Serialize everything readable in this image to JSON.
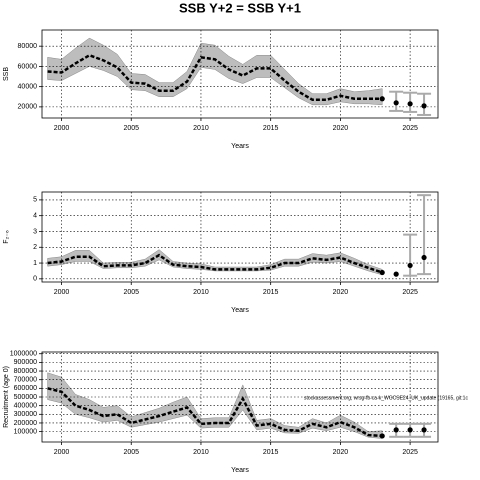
{
  "title": "SSB Y+2 = SSB Y+1",
  "annotation": "stockassessment.org, wrsg-fb-ca-k_WGCSE24_UK_update (19165, git:1c",
  "chart_data": [
    {
      "type": "line",
      "y_label": "SSB",
      "x_label": "Years",
      "x": [
        1999,
        2000,
        2001,
        2002,
        2003,
        2004,
        2005,
        2006,
        2007,
        2008,
        2009,
        2010,
        2011,
        2012,
        2013,
        2014,
        2015,
        2016,
        2017,
        2018,
        2019,
        2020,
        2021,
        2022,
        2023
      ],
      "estimate": [
        55000,
        54000,
        63000,
        71000,
        66000,
        59000,
        44000,
        43000,
        36000,
        36000,
        45000,
        69000,
        67000,
        57000,
        51000,
        58000,
        58000,
        46000,
        35000,
        27000,
        27000,
        31000,
        28000,
        28000,
        28000
      ],
      "lower": [
        47000,
        46000,
        53000,
        60000,
        56000,
        50000,
        37000,
        36000,
        30000,
        30000,
        38000,
        59000,
        57000,
        48000,
        43000,
        49000,
        49000,
        39000,
        29000,
        22000,
        22000,
        25000,
        23000,
        23000,
        22000
      ],
      "upper": [
        69000,
        67000,
        78000,
        88000,
        81000,
        72000,
        53000,
        52000,
        44000,
        44000,
        55000,
        83000,
        81000,
        70000,
        62000,
        71000,
        71000,
        57000,
        43000,
        33000,
        33000,
        38000,
        35000,
        36000,
        38000
      ],
      "forecast": {
        "x": [
          2023,
          2024,
          2025,
          2026
        ],
        "values": [
          28000,
          24000,
          23000,
          21000
        ],
        "lower": [
          null,
          16000,
          15000,
          12000
        ],
        "upper": [
          null,
          35000,
          34000,
          33000
        ]
      },
      "band_color": "#bdbdbd",
      "line_color": "#000000",
      "forecast_color": "#000000",
      "bar_color": "#aaaaaa",
      "xlim": [
        1998.6,
        2027
      ],
      "xticks": [
        2000,
        2005,
        2010,
        2015,
        2020,
        2025
      ],
      "ylim": [
        9000,
        96000
      ],
      "yticks": [
        20000,
        40000,
        60000,
        80000
      ],
      "grid": true
    },
    {
      "type": "line",
      "y_label": "F₂₋₆",
      "x_label": "Years",
      "x": [
        1999,
        2000,
        2001,
        2002,
        2003,
        2004,
        2005,
        2006,
        2007,
        2008,
        2009,
        2010,
        2011,
        2012,
        2013,
        2014,
        2015,
        2016,
        2017,
        2018,
        2019,
        2020,
        2021,
        2022,
        2023
      ],
      "estimate": [
        1.0,
        1.1,
        1.4,
        1.4,
        0.8,
        0.85,
        0.85,
        1.0,
        1.5,
        0.9,
        0.8,
        0.75,
        0.6,
        0.6,
        0.6,
        0.6,
        0.7,
        1.0,
        1.0,
        1.3,
        1.2,
        1.35,
        1.0,
        0.7,
        0.4
      ],
      "lower": [
        0.8,
        0.9,
        1.1,
        1.1,
        0.65,
        0.7,
        0.7,
        0.8,
        1.2,
        0.75,
        0.65,
        0.6,
        0.5,
        0.5,
        0.5,
        0.5,
        0.55,
        0.8,
        0.8,
        1.05,
        1.0,
        1.1,
        0.8,
        0.5,
        0.25
      ],
      "upper": [
        1.3,
        1.4,
        1.8,
        1.8,
        1.0,
        1.05,
        1.05,
        1.25,
        1.85,
        1.1,
        1.0,
        0.95,
        0.75,
        0.75,
        0.75,
        0.75,
        0.9,
        1.25,
        1.25,
        1.6,
        1.5,
        1.65,
        1.3,
        0.9,
        0.6
      ],
      "forecast": {
        "x": [
          2023,
          2024,
          2025,
          2026
        ],
        "values": [
          0.4,
          0.3,
          0.85,
          1.35
        ],
        "lower": [
          null,
          null,
          0.2,
          0.3
        ],
        "upper": [
          null,
          null,
          2.8,
          5.3
        ]
      },
      "band_color": "#bdbdbd",
      "line_color": "#000000",
      "forecast_color": "#000000",
      "bar_color": "#aaaaaa",
      "xlim": [
        1998.6,
        2027
      ],
      "xticks": [
        2000,
        2005,
        2010,
        2015,
        2020,
        2025
      ],
      "ylim": [
        -0.2,
        5.5
      ],
      "yticks": [
        0,
        1,
        2,
        3,
        4,
        5
      ],
      "grid": true
    },
    {
      "type": "line",
      "y_label": "Recruitment (age 0)",
      "x_label": "Years",
      "x": [
        1999,
        2000,
        2001,
        2002,
        2003,
        2004,
        2005,
        2006,
        2007,
        2008,
        2009,
        2010,
        2011,
        2012,
        2013,
        2014,
        2015,
        2016,
        2017,
        2018,
        2019,
        2020,
        2021,
        2022,
        2023
      ],
      "estimate": [
        600000,
        560000,
        400000,
        350000,
        280000,
        300000,
        200000,
        240000,
        280000,
        330000,
        380000,
        190000,
        200000,
        200000,
        480000,
        170000,
        190000,
        120000,
        110000,
        190000,
        150000,
        210000,
        150000,
        60000,
        50000
      ],
      "lower": [
        470000,
        430000,
        300000,
        260000,
        210000,
        230000,
        150000,
        180000,
        210000,
        250000,
        290000,
        140000,
        150000,
        150000,
        350000,
        120000,
        140000,
        85000,
        80000,
        140000,
        110000,
        150000,
        100000,
        35000,
        20000
      ],
      "upper": [
        780000,
        730000,
        530000,
        470000,
        380000,
        400000,
        270000,
        320000,
        370000,
        440000,
        500000,
        250000,
        260000,
        260000,
        640000,
        230000,
        250000,
        170000,
        150000,
        250000,
        200000,
        290000,
        210000,
        100000,
        110000
      ],
      "forecast": {
        "x": [
          2023,
          2024,
          2025,
          2026
        ],
        "values": [
          50000,
          120000,
          120000,
          120000
        ],
        "lower": [
          null,
          40000,
          40000,
          40000
        ],
        "upper": [
          null,
          190000,
          190000,
          190000
        ]
      },
      "band_color": "#bdbdbd",
      "line_color": "#000000",
      "forecast_color": "#000000",
      "bar_color": "#aaaaaa",
      "xlim": [
        1998.6,
        2027
      ],
      "xticks": [
        2000,
        2005,
        2010,
        2015,
        2020,
        2025
      ],
      "ylim": [
        -20000,
        1020000
      ],
      "yticks": [
        100000,
        200000,
        300000,
        400000,
        500000,
        600000,
        700000,
        800000,
        900000,
        1000000
      ],
      "grid": true
    }
  ]
}
